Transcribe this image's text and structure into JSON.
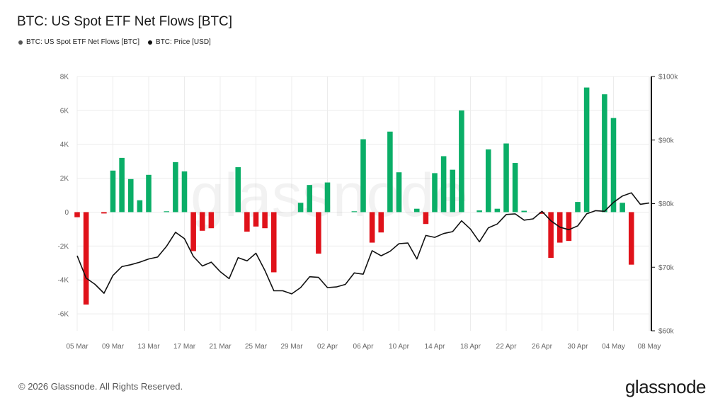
{
  "header": {
    "title": "BTC: US Spot ETF Net Flows [BTC]",
    "legend": [
      {
        "label": "BTC: US Spot ETF Net Flows [BTC]",
        "color": "#555555"
      },
      {
        "label": "BTC: Price [USD]",
        "color": "#111111"
      }
    ]
  },
  "footer": {
    "copyright": "© 2026 Glassnode. All Rights Reserved.",
    "brand": "glassnode"
  },
  "watermark": "glassnode",
  "colors": {
    "positive": "#0aae67",
    "negative": "#e0121a",
    "price_line": "#111111",
    "grid": "#ececec"
  },
  "chart_data": {
    "type": "bar",
    "x_start": "2026-03-05",
    "x_end": "2026-05-08",
    "x_tick_labels": [
      "05 Mar",
      "09 Mar",
      "13 Mar",
      "17 Mar",
      "21 Mar",
      "25 Mar",
      "29 Mar",
      "02 Apr",
      "06 Apr",
      "10 Apr",
      "14 Apr",
      "18 Apr",
      "22 Apr",
      "26 Apr",
      "30 Apr",
      "04 May",
      "08 May"
    ],
    "y_left": {
      "min": -7000,
      "max": 8000,
      "ticks": [
        8000,
        6000,
        4000,
        2000,
        0,
        -2000,
        -4000,
        -6000
      ],
      "tick_labels": [
        "8K",
        "6K",
        "4K",
        "2K",
        "0",
        "-2K",
        "-4K",
        "-6K"
      ]
    },
    "y_right": {
      "min": 60000,
      "max": 100000,
      "ticks": [
        100000,
        90000,
        80000,
        70000,
        60000
      ],
      "tick_labels": [
        "$100k",
        "$90k",
        "$80k",
        "$70k",
        "$60k"
      ]
    },
    "series": [
      {
        "name": "BTC: US Spot ETF Net Flows [BTC]",
        "axis": "left",
        "points": [
          [
            "2026-03-05",
            -300
          ],
          [
            "2026-03-06",
            -5450
          ],
          [
            "2026-03-08",
            -80
          ],
          [
            "2026-03-09",
            2450
          ],
          [
            "2026-03-10",
            3200
          ],
          [
            "2026-03-11",
            1950
          ],
          [
            "2026-03-12",
            700
          ],
          [
            "2026-03-13",
            2200
          ],
          [
            "2026-03-15",
            50
          ],
          [
            "2026-03-16",
            2950
          ],
          [
            "2026-03-17",
            2400
          ],
          [
            "2026-03-18",
            -2300
          ],
          [
            "2026-03-19",
            -1100
          ],
          [
            "2026-03-20",
            -950
          ],
          [
            "2026-03-23",
            2650
          ],
          [
            "2026-03-24",
            -1150
          ],
          [
            "2026-03-25",
            -850
          ],
          [
            "2026-03-26",
            -950
          ],
          [
            "2026-03-27",
            -3550
          ],
          [
            "2026-03-30",
            550
          ],
          [
            "2026-03-31",
            1600
          ],
          [
            "2026-04-01",
            -2450
          ],
          [
            "2026-04-02",
            1750
          ],
          [
            "2026-04-05",
            50
          ],
          [
            "2026-04-06",
            4300
          ],
          [
            "2026-04-07",
            -1800
          ],
          [
            "2026-04-08",
            -1200
          ],
          [
            "2026-04-09",
            4750
          ],
          [
            "2026-04-10",
            2350
          ],
          [
            "2026-04-12",
            200
          ],
          [
            "2026-04-13",
            -700
          ],
          [
            "2026-04-14",
            2300
          ],
          [
            "2026-04-15",
            3300
          ],
          [
            "2026-04-16",
            2500
          ],
          [
            "2026-04-17",
            6000
          ],
          [
            "2026-04-19",
            100
          ],
          [
            "2026-04-20",
            3700
          ],
          [
            "2026-04-21",
            200
          ],
          [
            "2026-04-22",
            4050
          ],
          [
            "2026-04-23",
            2900
          ],
          [
            "2026-04-24",
            80
          ],
          [
            "2026-04-26",
            -100
          ],
          [
            "2026-04-27",
            -2700
          ],
          [
            "2026-04-28",
            -1800
          ],
          [
            "2026-04-29",
            -1700
          ],
          [
            "2026-04-30",
            600
          ],
          [
            "2026-05-01",
            7350
          ],
          [
            "2026-05-03",
            6950
          ],
          [
            "2026-05-04",
            5550
          ],
          [
            "2026-05-05",
            550
          ],
          [
            "2026-05-06",
            -3100
          ]
        ]
      },
      {
        "name": "BTC: Price [USD]",
        "axis": "right",
        "type": "line",
        "points": [
          [
            "2026-03-05",
            71800
          ],
          [
            "2026-03-06",
            68300
          ],
          [
            "2026-03-07",
            67300
          ],
          [
            "2026-03-08",
            65900
          ],
          [
            "2026-03-09",
            68700
          ],
          [
            "2026-03-10",
            70100
          ],
          [
            "2026-03-11",
            70400
          ],
          [
            "2026-03-12",
            70800
          ],
          [
            "2026-03-13",
            71300
          ],
          [
            "2026-03-14",
            71600
          ],
          [
            "2026-03-15",
            73300
          ],
          [
            "2026-03-16",
            75500
          ],
          [
            "2026-03-17",
            74500
          ],
          [
            "2026-03-18",
            71700
          ],
          [
            "2026-03-19",
            70200
          ],
          [
            "2026-03-20",
            70800
          ],
          [
            "2026-03-21",
            69300
          ],
          [
            "2026-03-22",
            68200
          ],
          [
            "2026-03-23",
            71500
          ],
          [
            "2026-03-24",
            71000
          ],
          [
            "2026-03-25",
            72200
          ],
          [
            "2026-03-26",
            69500
          ],
          [
            "2026-03-27",
            66300
          ],
          [
            "2026-03-28",
            66300
          ],
          [
            "2026-03-29",
            65800
          ],
          [
            "2026-03-30",
            66800
          ],
          [
            "2026-03-31",
            68500
          ],
          [
            "2026-04-01",
            68400
          ],
          [
            "2026-04-02",
            66800
          ],
          [
            "2026-04-03",
            66900
          ],
          [
            "2026-04-04",
            67300
          ],
          [
            "2026-04-05",
            69100
          ],
          [
            "2026-04-06",
            68900
          ],
          [
            "2026-04-07",
            72600
          ],
          [
            "2026-04-08",
            71800
          ],
          [
            "2026-04-09",
            72500
          ],
          [
            "2026-04-10",
            73700
          ],
          [
            "2026-04-11",
            73800
          ],
          [
            "2026-04-12",
            71300
          ],
          [
            "2026-04-13",
            75000
          ],
          [
            "2026-04-14",
            74700
          ],
          [
            "2026-04-15",
            75300
          ],
          [
            "2026-04-16",
            75600
          ],
          [
            "2026-04-17",
            77300
          ],
          [
            "2026-04-18",
            76000
          ],
          [
            "2026-04-19",
            74000
          ],
          [
            "2026-04-20",
            76200
          ],
          [
            "2026-04-21",
            76800
          ],
          [
            "2026-04-22",
            78300
          ],
          [
            "2026-04-23",
            78400
          ],
          [
            "2026-04-24",
            77400
          ],
          [
            "2026-04-25",
            77600
          ],
          [
            "2026-04-26",
            78800
          ],
          [
            "2026-04-27",
            77300
          ],
          [
            "2026-04-28",
            76300
          ],
          [
            "2026-04-29",
            75900
          ],
          [
            "2026-04-30",
            76500
          ],
          [
            "2026-05-01",
            78400
          ],
          [
            "2026-05-02",
            78900
          ],
          [
            "2026-05-03",
            78800
          ],
          [
            "2026-05-04",
            80200
          ],
          [
            "2026-05-05",
            81200
          ],
          [
            "2026-05-06",
            81700
          ],
          [
            "2026-05-07",
            79900
          ],
          [
            "2026-05-08",
            80100
          ]
        ]
      }
    ],
    "grid": true,
    "legend_position": "top-left"
  }
}
